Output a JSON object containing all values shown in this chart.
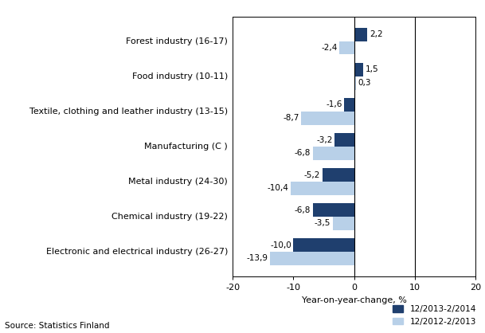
{
  "categories": [
    "Electronic and electrical industry (26-27)",
    "Chemical industry (19-22)",
    "Metal industry (24-30)",
    "Manufacturing (C )",
    "Textile, clothing and leather industry (13-15)",
    "Food industry (10-11)",
    "Forest industry (16-17)"
  ],
  "series1_label": "12/2013-2/2014",
  "series2_label": "12/2012-2/2013",
  "series1_values": [
    -10.0,
    -6.8,
    -5.2,
    -3.2,
    -1.6,
    1.5,
    2.2
  ],
  "series2_values": [
    -13.9,
    -3.5,
    -10.4,
    -6.8,
    -8.7,
    0.3,
    -2.4
  ],
  "series1_color": "#1F3F6E",
  "series2_color": "#B8D0E8",
  "xlabel": "Year-on-year-change, %",
  "xlim": [
    -20,
    20
  ],
  "xticks": [
    -20,
    -10,
    0,
    10,
    20
  ],
  "source_text": "Source: Statistics Finland",
  "bar_height": 0.38,
  "label_fontsize": 8,
  "tick_fontsize": 8,
  "value_fontsize": 7.5
}
